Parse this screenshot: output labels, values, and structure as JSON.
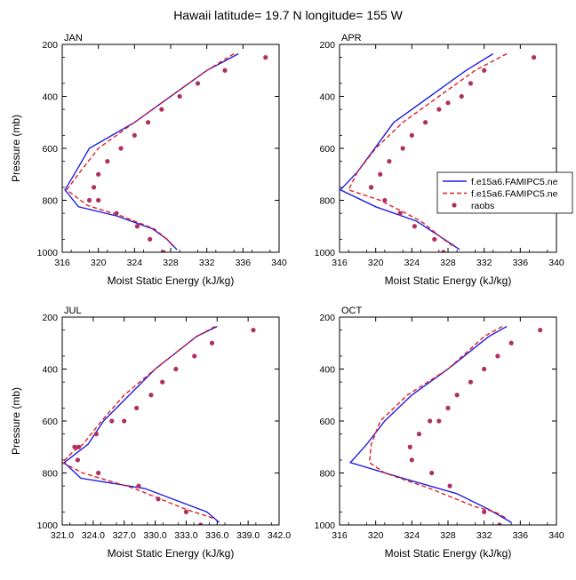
{
  "title": "Hawaii  latitude= 19.7 N longitude= 155 W",
  "legend": {
    "items": [
      {
        "label": "f.e15a6.FAMIPC5.ne",
        "style": "solid",
        "color": "#1f1fe0"
      },
      {
        "label": "f.e15a6.FAMIPC5.ne",
        "style": "dashed",
        "color": "#e01f1f"
      },
      {
        "label": "raobs",
        "style": "dot",
        "color": "#b03060"
      }
    ]
  },
  "chart_data": [
    {
      "type": "line",
      "panel_label": "JAN",
      "xlabel": "Moist Static Energy (kJ/kg)",
      "ylabel": "Pressure (mb)",
      "xlim": [
        316,
        340
      ],
      "ylim": [
        200,
        1000
      ],
      "y_reversed": true,
      "xticks": [
        "316",
        "320",
        "324",
        "328",
        "332",
        "336",
        "340"
      ],
      "yticks": [
        "200",
        "400",
        "600",
        "800",
        "1000"
      ],
      "series": [
        {
          "style": "solid",
          "color": "#1f1fe0",
          "x": [
            335.5,
            332,
            328,
            324,
            319,
            317.5,
            316.3,
            317.8,
            322,
            326,
            327.6,
            328.7
          ],
          "y": [
            236,
            300,
            400,
            500,
            600,
            690,
            760,
            825,
            860,
            910,
            950,
            990
          ]
        },
        {
          "style": "dashed",
          "color": "#e01f1f",
          "x": [
            335,
            332,
            328,
            324,
            320,
            318,
            316.5,
            318.8,
            322.5,
            326.2,
            327.6,
            328.2
          ],
          "y": [
            236,
            300,
            400,
            500,
            600,
            690,
            760,
            820,
            860,
            910,
            950,
            975
          ]
        },
        {
          "style": "dot",
          "color": "#b03060",
          "x": [
            338.5,
            334,
            331,
            329,
            327,
            325.5,
            324,
            322.5,
            321,
            320,
            319.5,
            319,
            320,
            322,
            324.3,
            325.7,
            327.2
          ],
          "y": [
            250,
            300,
            350,
            400,
            450,
            500,
            550,
            600,
            650,
            700,
            750,
            800,
            800,
            850,
            900,
            950,
            1000
          ]
        }
      ]
    },
    {
      "type": "line",
      "panel_label": "APR",
      "xlabel": "Moist Static Energy (kJ/kg)",
      "ylabel": "",
      "xlim": [
        316,
        340
      ],
      "ylim": [
        200,
        1000
      ],
      "y_reversed": true,
      "xticks": [
        "316",
        "320",
        "324",
        "328",
        "332",
        "336",
        "340"
      ],
      "yticks": [
        "200",
        "400",
        "600",
        "800",
        "1000"
      ],
      "series": [
        {
          "style": "solid",
          "color": "#1f1fe0",
          "x": [
            333,
            330,
            326,
            322,
            318,
            316.1,
            320,
            324.5,
            327.6,
            329.3
          ],
          "y": [
            236,
            300,
            400,
            500,
            690,
            760,
            825,
            880,
            950,
            990
          ]
        },
        {
          "style": "dashed",
          "color": "#e01f1f",
          "x": [
            334.5,
            331,
            327,
            323,
            320,
            318,
            317,
            320.5,
            325,
            327.5,
            328.5
          ],
          "y": [
            236,
            300,
            400,
            500,
            600,
            690,
            760,
            800,
            880,
            950,
            975
          ]
        },
        {
          "style": "dot",
          "color": "#b03060",
          "x": [
            337.5,
            332,
            330.5,
            329.5,
            328,
            327,
            325.5,
            324,
            323,
            321.5,
            320.5,
            319.5,
            319.5,
            321,
            322.7,
            324.3,
            326.5,
            327.5
          ],
          "y": [
            250,
            300,
            350,
            400,
            425,
            450,
            500,
            550,
            600,
            650,
            700,
            750,
            750,
            800,
            850,
            900,
            950,
            1000
          ]
        }
      ]
    },
    {
      "type": "line",
      "panel_label": "JUL",
      "xlabel": "Moist Static Energy (kJ/kg)",
      "ylabel": "Pressure (mb)",
      "xlim": [
        321,
        342
      ],
      "ylim": [
        200,
        1000
      ],
      "y_reversed": true,
      "xticks": [
        "321.0",
        "324.0",
        "327.0",
        "330.0",
        "333.0",
        "336.0",
        "339.0",
        "342.0"
      ],
      "yticks": [
        "200",
        "400",
        "600",
        "800",
        "1000"
      ],
      "series": [
        {
          "style": "solid",
          "color": "#1f1fe0",
          "x": [
            336,
            334,
            330,
            327,
            325,
            323.5,
            322.5,
            321.2,
            322.8,
            329,
            335,
            336.2
          ],
          "y": [
            236,
            275,
            400,
            520,
            600,
            690,
            720,
            760,
            820,
            860,
            950,
            990
          ]
        },
        {
          "style": "dashed",
          "color": "#e01f1f",
          "x": [
            335.8,
            334,
            330,
            327,
            324.8,
            323,
            322,
            321,
            323,
            328,
            333,
            335.7
          ],
          "y": [
            236,
            275,
            400,
            500,
            600,
            690,
            720,
            760,
            800,
            860,
            940,
            975
          ]
        },
        {
          "style": "dot",
          "color": "#b03060",
          "x": [
            339.5,
            335.5,
            333.8,
            332,
            330.7,
            329.6,
            328.2,
            327,
            325.8,
            324.3,
            322.6,
            322.2,
            322.5,
            324.5,
            328.4,
            330.3,
            333,
            334.4
          ],
          "y": [
            250,
            300,
            350,
            400,
            450,
            500,
            550,
            600,
            600,
            650,
            700,
            700,
            750,
            800,
            850,
            900,
            950,
            1000
          ]
        }
      ]
    },
    {
      "type": "line",
      "panel_label": "OCT",
      "xlabel": "Moist Static Energy (kJ/kg)",
      "ylabel": "",
      "xlim": [
        316,
        340
      ],
      "ylim": [
        200,
        1000
      ],
      "y_reversed": true,
      "xticks": [
        "316",
        "320",
        "324",
        "328",
        "332",
        "336",
        "340"
      ],
      "yticks": [
        "200",
        "400",
        "600",
        "800",
        "1000"
      ],
      "series": [
        {
          "style": "solid",
          "color": "#1f1fe0",
          "x": [
            334.5,
            332.5,
            328,
            324,
            321,
            319,
            317.2,
            323,
            329,
            332.5,
            335
          ],
          "y": [
            236,
            275,
            400,
            500,
            600,
            690,
            760,
            820,
            880,
            940,
            990
          ]
        },
        {
          "style": "dashed",
          "color": "#e01f1f",
          "x": [
            334,
            332,
            328,
            323.5,
            320.5,
            319.5,
            319.3,
            321,
            326,
            331,
            333.2,
            334.5
          ],
          "y": [
            236,
            275,
            400,
            500,
            600,
            690,
            760,
            800,
            860,
            930,
            950,
            975
          ]
        },
        {
          "style": "dot",
          "color": "#b03060",
          "x": [
            338.2,
            335,
            333.5,
            332,
            330.5,
            329,
            328,
            327,
            326,
            324.8,
            323.8,
            324,
            326.2,
            328.2,
            332,
            333.7
          ],
          "y": [
            250,
            300,
            350,
            400,
            450,
            500,
            550,
            600,
            600,
            650,
            700,
            750,
            800,
            850,
            950,
            1000
          ]
        }
      ]
    }
  ]
}
